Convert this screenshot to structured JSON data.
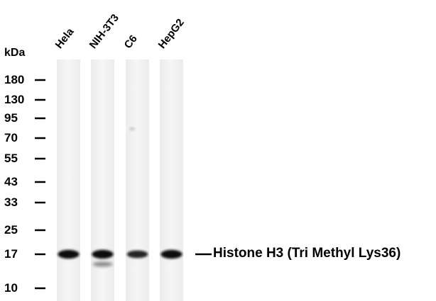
{
  "unit_label": "kDa",
  "lanes": [
    {
      "name": "Hela",
      "main_band": 1.0,
      "extra_band": 0
    },
    {
      "name": "NIH-3T3",
      "main_band": 1.0,
      "extra_band": 0.45
    },
    {
      "name": "C6",
      "main_band": 0.75,
      "extra_band": 0
    },
    {
      "name": "HepG2",
      "main_band": 1.0,
      "extra_band": 0
    }
  ],
  "markers": [
    "180",
    "130",
    "95",
    "70",
    "55",
    "43",
    "33",
    "25",
    "17",
    "10"
  ],
  "band_label": "Histone H3 (Tri Methyl Lys36)",
  "colors": {
    "band": "#111111",
    "lane_bg": "#f3f3f3",
    "background": "#ffffff"
  }
}
